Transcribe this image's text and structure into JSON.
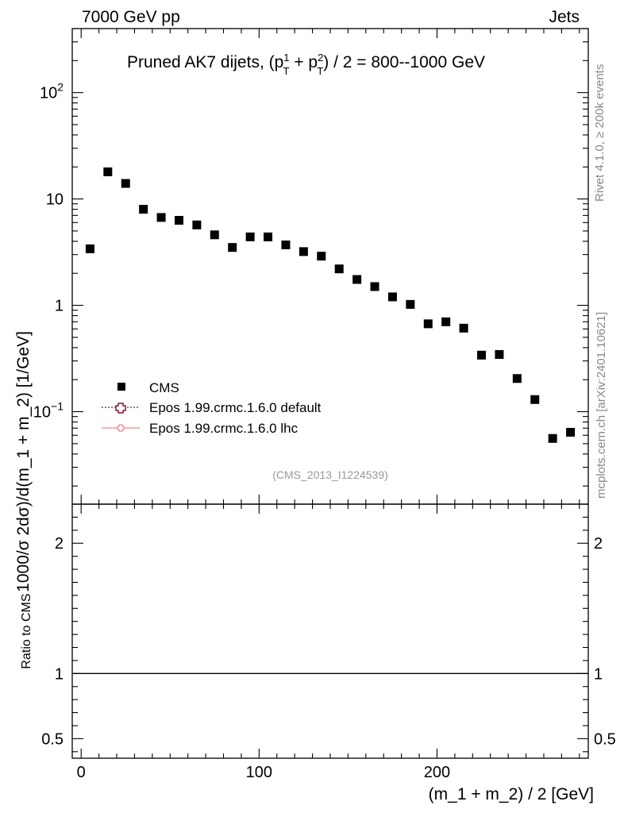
{
  "header": {
    "left": "7000 GeV pp",
    "right": "Jets"
  },
  "side_text": {
    "rivet": "Rivet 4.1.0, ≥ 200k events",
    "mcplots": "mcplots.cern.ch [arXiv:2401.10621]"
  },
  "chart_data": {
    "type": "scatter",
    "title_parts": {
      "prefix": "Pruned AK7 dijets, (p",
      "sub1": "T",
      "sup1": "1",
      "plus": " + p",
      "sub2": "T",
      "sup2": "2",
      "suffix": ") / 2 = 800--1000 GeV"
    },
    "xlabel": "(m_1 + m_2) / 2 [GeV]",
    "ylabel": "1000/σ   2dσ)/d(m_1 + m_2) [1/GeV]",
    "ratio_ylabel": "Ratio to CMS",
    "xlim": [
      -5,
      285
    ],
    "ylim": [
      0.0135,
      400
    ],
    "yscale": "log",
    "ratio_ylim": [
      0.35,
      2.3
    ],
    "x_ticks": [
      0,
      100,
      200
    ],
    "x_tick_labels": [
      "0",
      "100",
      "200"
    ],
    "y_ticks": [
      0.1,
      1,
      10,
      100
    ],
    "y_tick_labels": [
      {
        "base": "10",
        "exp": "−1"
      },
      {
        "base": "1",
        "exp": ""
      },
      {
        "base": "10",
        "exp": ""
      },
      {
        "base": "10",
        "exp": "2"
      }
    ],
    "ratio_ticks": [
      0.5,
      1,
      2
    ],
    "ratio_tick_labels": [
      "0.5",
      "1",
      "2"
    ],
    "analysis_id": "(CMS_2013_I1224539)",
    "legend": [
      {
        "label": "CMS",
        "style": "marker",
        "color": "#000000"
      },
      {
        "label": "Epos 1.99.crmc.1.6.0 default",
        "style": "dotted-cross",
        "color": "#7a1a3a"
      },
      {
        "label": "Epos 1.99.crmc.1.6.0 lhc",
        "style": "solid-cross",
        "color": "#ee8888"
      }
    ],
    "series": [
      {
        "name": "CMS",
        "x": [
          5,
          15,
          25,
          35,
          45,
          55,
          65,
          75,
          85,
          95,
          105,
          115,
          125,
          135,
          145,
          155,
          165,
          175,
          185,
          195,
          205,
          215,
          225,
          235,
          245,
          255,
          265,
          275
        ],
        "values": [
          3.4,
          18,
          14,
          8,
          6.7,
          6.3,
          5.7,
          4.6,
          3.5,
          4.4,
          4.4,
          3.7,
          3.2,
          2.9,
          2.2,
          1.75,
          1.5,
          1.2,
          1.02,
          0.67,
          0.7,
          0.61,
          0.34,
          0.345,
          0.205,
          0.13,
          0.056,
          0.064
        ]
      }
    ],
    "ratio_series": [
      {
        "name": "CMS",
        "x": [
          -5,
          285
        ],
        "values": [
          1,
          1
        ]
      }
    ]
  }
}
